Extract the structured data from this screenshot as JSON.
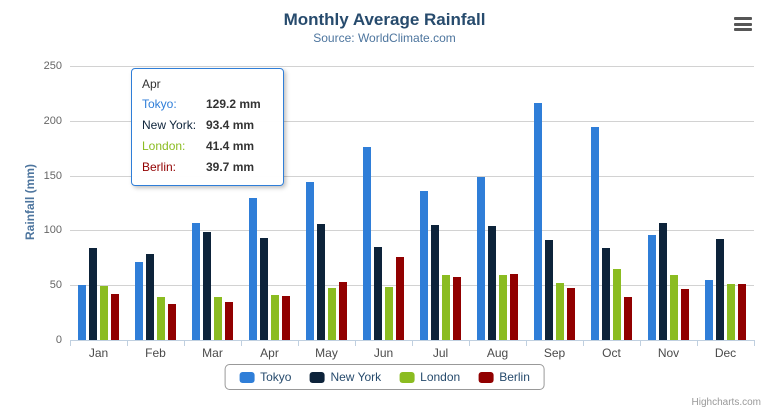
{
  "chart": {
    "title": "Monthly Average Rainfall",
    "subtitle": "Source: WorldClimate.com",
    "credits": "Highcharts.com",
    "context_menu_icon": "hamburger-menu-icon"
  },
  "chart_data": {
    "type": "bar",
    "title": "Monthly Average Rainfall",
    "subtitle": "Source: WorldClimate.com",
    "xlabel": "",
    "ylabel": "Rainfall (mm)",
    "ylim": [
      0,
      250
    ],
    "yticks": [
      0,
      50,
      100,
      150,
      200,
      250
    ],
    "grid": true,
    "legend_position": "bottom",
    "categories": [
      "Jan",
      "Feb",
      "Mar",
      "Apr",
      "May",
      "Jun",
      "Jul",
      "Aug",
      "Sep",
      "Oct",
      "Nov",
      "Dec"
    ],
    "series": [
      {
        "name": "Tokyo",
        "color": "#2f7ed8",
        "values": [
          49.9,
          71.5,
          106.4,
          129.2,
          144.0,
          176.0,
          135.6,
          148.5,
          216.4,
          194.1,
          95.6,
          54.4
        ]
      },
      {
        "name": "New York",
        "color": "#0d233a",
        "values": [
          83.6,
          78.8,
          98.5,
          93.4,
          106.0,
          84.5,
          105.0,
          104.3,
          91.2,
          83.5,
          106.6,
          92.3
        ]
      },
      {
        "name": "London",
        "color": "#8bbc21",
        "values": [
          48.9,
          38.8,
          39.3,
          41.4,
          47.0,
          48.3,
          59.0,
          59.6,
          52.4,
          65.2,
          59.3,
          51.2
        ]
      },
      {
        "name": "Berlin",
        "color": "#910000",
        "values": [
          42.4,
          33.2,
          34.5,
          39.7,
          52.6,
          75.5,
          57.4,
          60.4,
          47.6,
          39.1,
          46.8,
          51.1
        ]
      }
    ]
  },
  "tooltip": {
    "header": "Apr",
    "border_color": "#2f7ed8",
    "rows": [
      {
        "label": "Tokyo:",
        "value": "129.2 mm",
        "color": "#2f7ed8"
      },
      {
        "label": "New York:",
        "value": "93.4 mm",
        "color": "#0d233a"
      },
      {
        "label": "London:",
        "value": "41.4 mm",
        "color": "#8bbc21"
      },
      {
        "label": "Berlin:",
        "value": "39.7 mm",
        "color": "#910000"
      }
    ]
  }
}
